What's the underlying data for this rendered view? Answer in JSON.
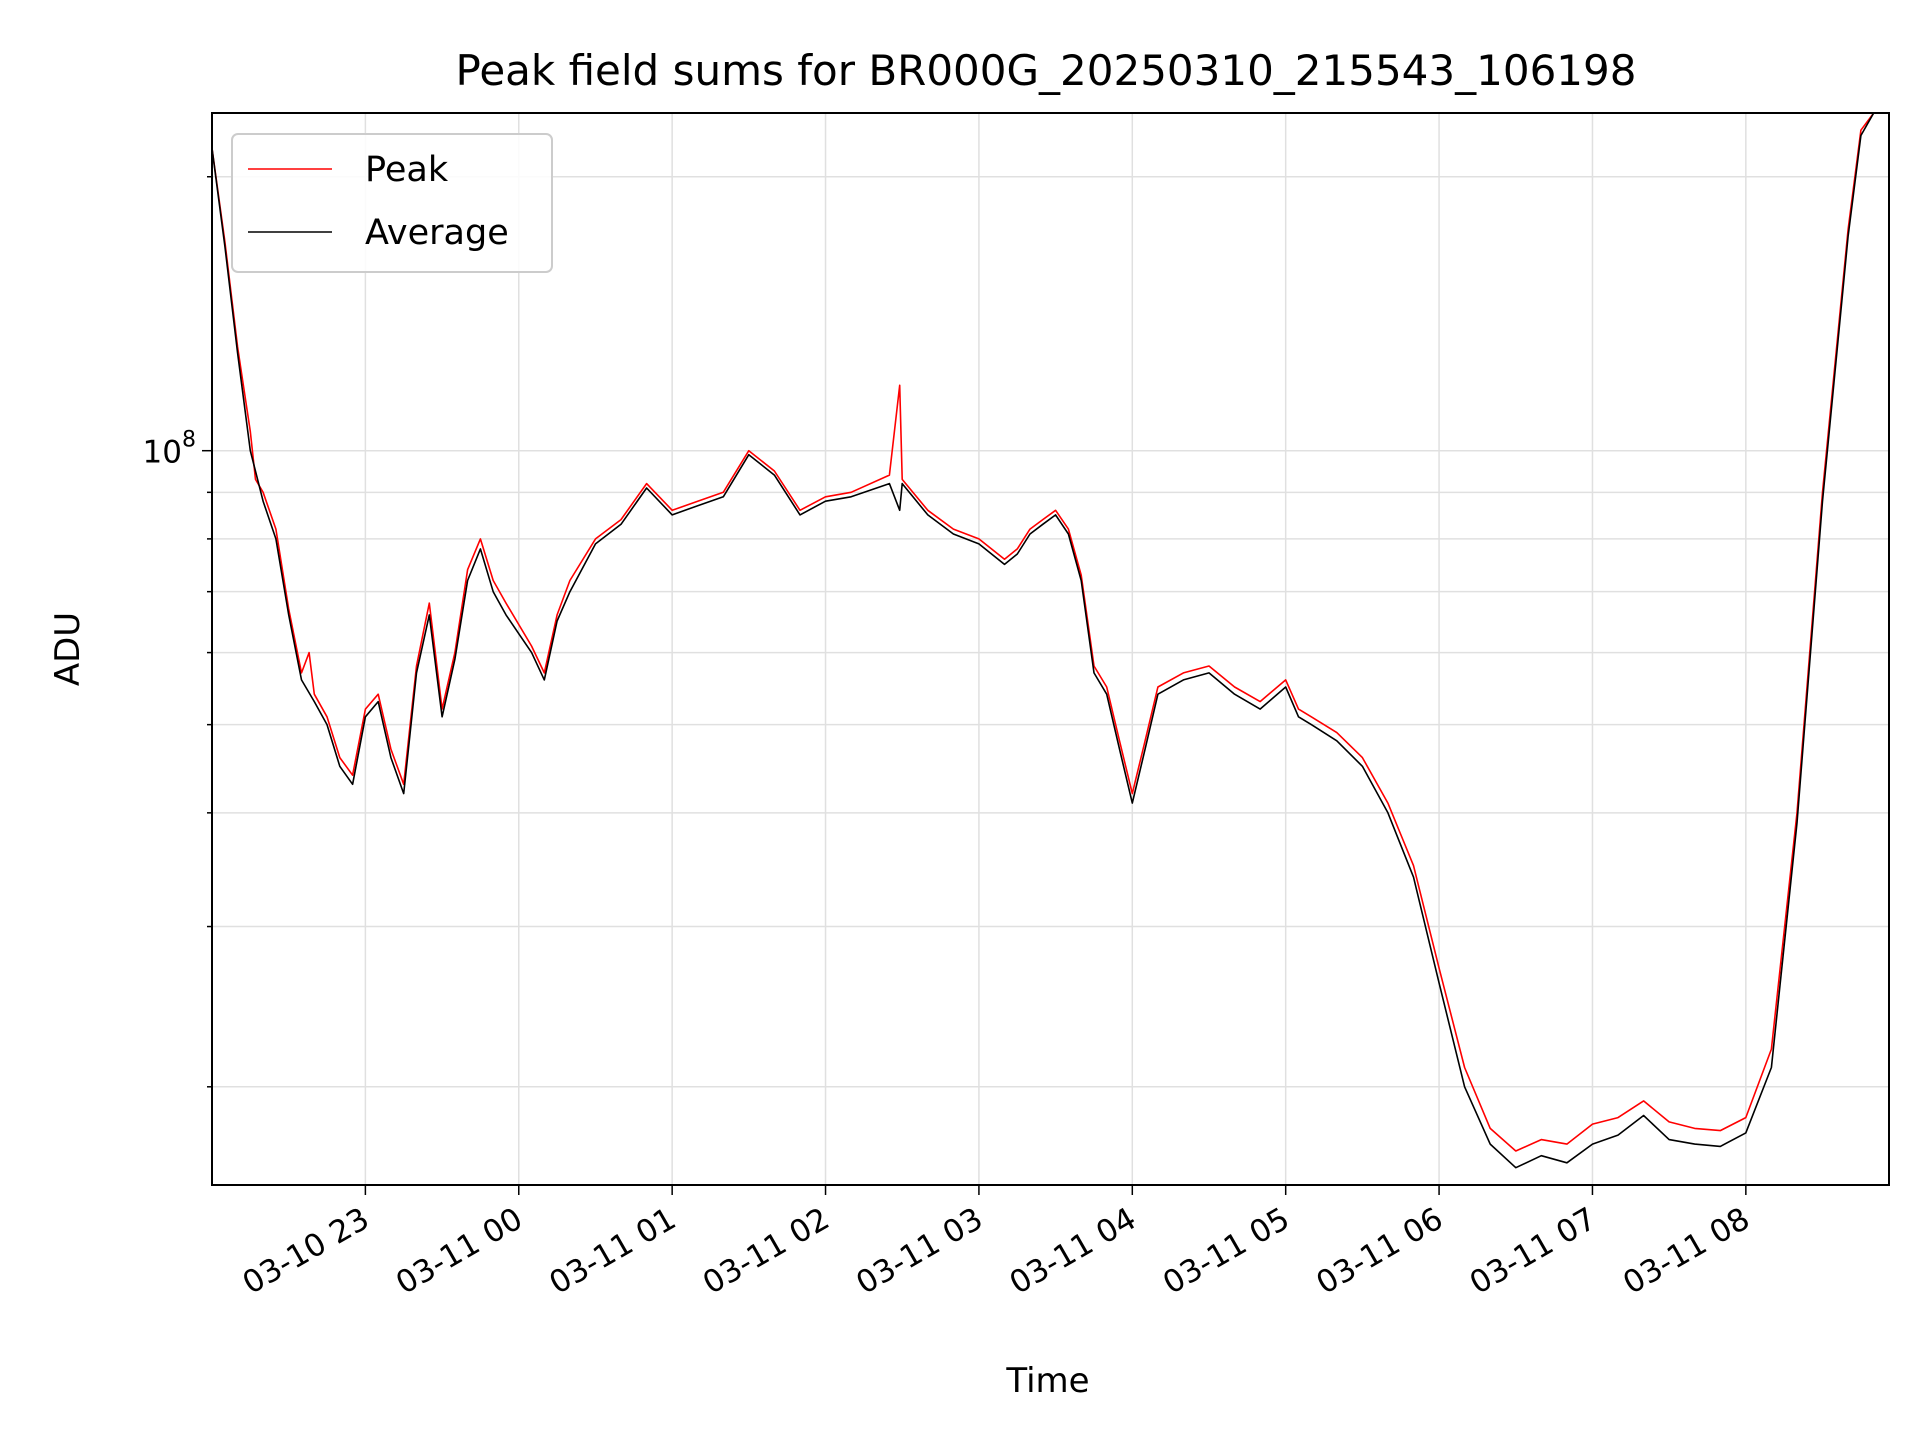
{
  "chart_data": {
    "type": "line",
    "title": "Peak field sums for BR000G_20250310_215543_106198",
    "xlabel": "Time",
    "ylabel": "ADU",
    "y_scale": "log",
    "ylim": [
      15600000,
      235000000
    ],
    "xlim": [
      "2025-03-10 22:00",
      "2025-03-11 08:56"
    ],
    "grid": true,
    "legend_position": "upper-left",
    "x_ticks": [
      "2025-03-10 23:00",
      "2025-03-11 00:00",
      "2025-03-11 01:00",
      "2025-03-11 02:00",
      "2025-03-11 03:00",
      "2025-03-11 04:00",
      "2025-03-11 05:00",
      "2025-03-11 06:00",
      "2025-03-11 07:00",
      "2025-03-11 08:00"
    ],
    "x_tick_labels": [
      "03-10 23",
      "03-11 00",
      "03-11 01",
      "03-11 02",
      "03-11 03",
      "03-11 04",
      "03-11 05",
      "03-11 06",
      "03-11 07",
      "03-11 08"
    ],
    "y_tick_labels": [
      {
        "value": 100000000,
        "base": "10",
        "exp": "8"
      }
    ],
    "series": [
      {
        "name": "Peak",
        "color": "#ff0000",
        "x": [
          "2025-03-10 22:00",
          "2025-03-10 22:05",
          "2025-03-10 22:10",
          "2025-03-10 22:15",
          "2025-03-10 22:17",
          "2025-03-10 22:20",
          "2025-03-10 22:25",
          "2025-03-10 22:30",
          "2025-03-10 22:35",
          "2025-03-10 22:38",
          "2025-03-10 22:40",
          "2025-03-10 22:45",
          "2025-03-10 22:50",
          "2025-03-10 22:55",
          "2025-03-10 23:00",
          "2025-03-10 23:05",
          "2025-03-10 23:10",
          "2025-03-10 23:15",
          "2025-03-10 23:20",
          "2025-03-10 23:25",
          "2025-03-10 23:30",
          "2025-03-10 23:35",
          "2025-03-10 23:40",
          "2025-03-10 23:45",
          "2025-03-10 23:50",
          "2025-03-10 23:55",
          "2025-03-11 00:05",
          "2025-03-11 00:10",
          "2025-03-11 00:15",
          "2025-03-11 00:20",
          "2025-03-11 00:30",
          "2025-03-11 00:40",
          "2025-03-11 00:50",
          "2025-03-11 01:00",
          "2025-03-11 01:10",
          "2025-03-11 01:20",
          "2025-03-11 01:30",
          "2025-03-11 01:40",
          "2025-03-11 01:50",
          "2025-03-11 02:00",
          "2025-03-11 02:10",
          "2025-03-11 02:25",
          "2025-03-11 02:29",
          "2025-03-11 02:30",
          "2025-03-11 02:40",
          "2025-03-11 02:50",
          "2025-03-11 03:00",
          "2025-03-11 03:10",
          "2025-03-11 03:15",
          "2025-03-11 03:20",
          "2025-03-11 03:25",
          "2025-03-11 03:30",
          "2025-03-11 03:35",
          "2025-03-11 03:40",
          "2025-03-11 03:45",
          "2025-03-11 03:50",
          "2025-03-11 03:55",
          "2025-03-11 04:00",
          "2025-03-11 04:05",
          "2025-03-11 04:10",
          "2025-03-11 04:20",
          "2025-03-11 04:30",
          "2025-03-11 04:40",
          "2025-03-11 04:50",
          "2025-03-11 05:00",
          "2025-03-11 05:05",
          "2025-03-11 05:10",
          "2025-03-11 05:20",
          "2025-03-11 05:30",
          "2025-03-11 05:40",
          "2025-03-11 05:50",
          "2025-03-11 06:00",
          "2025-03-11 06:10",
          "2025-03-11 06:20",
          "2025-03-11 06:30",
          "2025-03-11 06:40",
          "2025-03-11 06:50",
          "2025-03-11 07:00",
          "2025-03-11 07:10",
          "2025-03-11 07:20",
          "2025-03-11 07:30",
          "2025-03-11 07:40",
          "2025-03-11 07:50",
          "2025-03-11 08:00",
          "2025-03-11 08:10",
          "2025-03-11 08:20",
          "2025-03-11 08:30",
          "2025-03-11 08:40",
          "2025-03-11 08:45",
          "2025-03-11 08:50",
          "2025-03-11 08:56"
        ],
        "y": [
          215000000,
          170000000,
          130000000,
          105000000,
          93000000,
          90000000,
          82000000,
          67000000,
          57000000,
          60000000,
          54000000,
          51000000,
          46000000,
          44000000,
          52000000,
          54000000,
          47000000,
          43000000,
          58000000,
          68000000,
          52000000,
          60000000,
          74000000,
          80000000,
          72000000,
          68000000,
          61000000,
          57000000,
          66000000,
          72000000,
          80000000,
          84000000,
          92000000,
          86000000,
          88000000,
          90000000,
          100000000,
          95000000,
          86000000,
          89000000,
          90000000,
          94000000,
          118000000,
          93000000,
          86000000,
          82000000,
          80000000,
          76000000,
          78000000,
          82000000,
          84000000,
          86000000,
          82000000,
          73000000,
          58000000,
          55000000,
          48000000,
          42000000,
          48000000,
          55000000,
          57000000,
          58000000,
          55000000,
          53000000,
          56000000,
          52000000,
          51000000,
          49000000,
          46000000,
          41000000,
          35000000,
          27000000,
          21000000,
          18000000,
          17000000,
          17500000,
          17300000,
          18200000,
          18500000,
          19300000,
          18300000,
          18000000,
          17900000,
          18500000,
          22000000,
          40000000,
          90000000,
          175000000,
          225000000,
          235000000,
          235000000
        ]
      },
      {
        "name": "Average",
        "color": "#000000",
        "x": [
          "2025-03-10 22:00",
          "2025-03-10 22:05",
          "2025-03-10 22:10",
          "2025-03-10 22:15",
          "2025-03-10 22:20",
          "2025-03-10 22:25",
          "2025-03-10 22:30",
          "2025-03-10 22:35",
          "2025-03-10 22:40",
          "2025-03-10 22:45",
          "2025-03-10 22:50",
          "2025-03-10 22:55",
          "2025-03-10 23:00",
          "2025-03-10 23:05",
          "2025-03-10 23:10",
          "2025-03-10 23:15",
          "2025-03-10 23:20",
          "2025-03-10 23:25",
          "2025-03-10 23:30",
          "2025-03-10 23:35",
          "2025-03-10 23:40",
          "2025-03-10 23:45",
          "2025-03-10 23:50",
          "2025-03-10 23:55",
          "2025-03-11 00:05",
          "2025-03-11 00:10",
          "2025-03-11 00:15",
          "2025-03-11 00:20",
          "2025-03-11 00:30",
          "2025-03-11 00:40",
          "2025-03-11 00:50",
          "2025-03-11 01:00",
          "2025-03-11 01:10",
          "2025-03-11 01:20",
          "2025-03-11 01:30",
          "2025-03-11 01:40",
          "2025-03-11 01:50",
          "2025-03-11 02:00",
          "2025-03-11 02:10",
          "2025-03-11 02:25",
          "2025-03-11 02:29",
          "2025-03-11 02:30",
          "2025-03-11 02:40",
          "2025-03-11 02:50",
          "2025-03-11 03:00",
          "2025-03-11 03:10",
          "2025-03-11 03:15",
          "2025-03-11 03:20",
          "2025-03-11 03:25",
          "2025-03-11 03:30",
          "2025-03-11 03:35",
          "2025-03-11 03:40",
          "2025-03-11 03:45",
          "2025-03-11 03:50",
          "2025-03-11 03:55",
          "2025-03-11 04:00",
          "2025-03-11 04:05",
          "2025-03-11 04:10",
          "2025-03-11 04:20",
          "2025-03-11 04:30",
          "2025-03-11 04:40",
          "2025-03-11 04:50",
          "2025-03-11 05:00",
          "2025-03-11 05:05",
          "2025-03-11 05:10",
          "2025-03-11 05:20",
          "2025-03-11 05:30",
          "2025-03-11 05:40",
          "2025-03-11 05:50",
          "2025-03-11 06:00",
          "2025-03-11 06:10",
          "2025-03-11 06:20",
          "2025-03-11 06:30",
          "2025-03-11 06:40",
          "2025-03-11 06:50",
          "2025-03-11 07:00",
          "2025-03-11 07:10",
          "2025-03-11 07:20",
          "2025-03-11 07:30",
          "2025-03-11 07:40",
          "2025-03-11 07:50",
          "2025-03-11 08:00",
          "2025-03-11 08:10",
          "2025-03-11 08:20",
          "2025-03-11 08:30",
          "2025-03-11 08:40",
          "2025-03-11 08:45",
          "2025-03-11 08:50",
          "2025-03-11 08:56"
        ],
        "y": [
          215000000,
          168000000,
          128000000,
          100000000,
          88000000,
          80000000,
          66000000,
          56000000,
          53000000,
          50000000,
          45000000,
          43000000,
          51000000,
          53000000,
          46000000,
          42000000,
          57000000,
          66000000,
          51000000,
          59000000,
          72000000,
          78000000,
          70000000,
          66000000,
          60000000,
          56000000,
          65000000,
          70000000,
          79000000,
          83000000,
          91000000,
          85000000,
          87000000,
          89000000,
          99000000,
          94000000,
          85000000,
          88000000,
          89000000,
          92000000,
          86000000,
          92000000,
          85000000,
          81000000,
          79000000,
          75000000,
          77000000,
          81000000,
          83000000,
          85000000,
          81000000,
          72000000,
          57000000,
          54000000,
          47000000,
          41000000,
          47000000,
          54000000,
          56000000,
          57000000,
          54000000,
          52000000,
          55000000,
          51000000,
          50000000,
          48000000,
          45000000,
          40000000,
          34000000,
          26000000,
          20000000,
          17300000,
          16300000,
          16800000,
          16500000,
          17300000,
          17700000,
          18600000,
          17500000,
          17300000,
          17200000,
          17800000,
          21000000,
          39000000,
          88000000,
          172000000,
          222000000,
          235000000,
          235000000
        ]
      }
    ]
  }
}
